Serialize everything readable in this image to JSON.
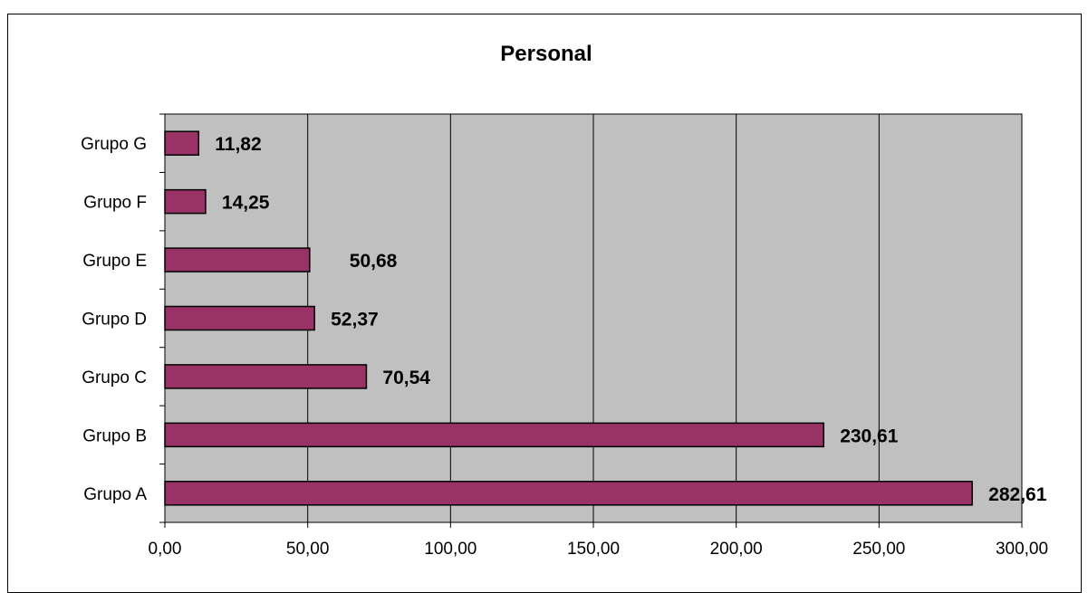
{
  "chart_data": {
    "type": "bar",
    "orientation": "horizontal",
    "title": "Personal",
    "xlabel": "",
    "ylabel": "",
    "categories": [
      "Grupo A",
      "Grupo B",
      "Grupo C",
      "Grupo D",
      "Grupo E",
      "Grupo F",
      "Grupo G"
    ],
    "values": [
      282.61,
      230.61,
      70.54,
      52.37,
      50.68,
      14.25,
      11.82
    ],
    "data_labels": [
      "282,61",
      "230,61",
      "70,54",
      "52,37",
      "50,68",
      "14,25",
      "11,82"
    ],
    "xlim": [
      0,
      300
    ],
    "x_ticks": [
      0,
      50,
      100,
      150,
      200,
      250,
      300
    ],
    "x_tick_labels": [
      "0,00",
      "50,00",
      "100,00",
      "150,00",
      "200,00",
      "250,00",
      "300,00"
    ],
    "grid": true,
    "legend": "none",
    "colors": {
      "bar_fill": "#993366",
      "bar_stroke": "#000000",
      "plot_background": "#c0c0c0",
      "gridline": "#000000"
    }
  }
}
